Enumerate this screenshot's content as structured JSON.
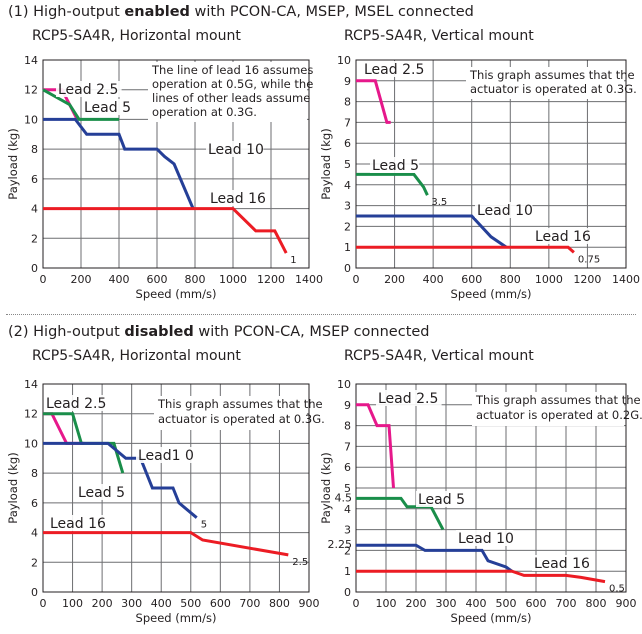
{
  "sections": [
    {
      "prefix": "(1) High-output ",
      "bold": "enabled",
      "suffix": " with PCON-CA, MSEP, MSEL connected"
    },
    {
      "prefix": "(2) High-output ",
      "bold": "disabled",
      "suffix": " with PCON-CA, MSEP connected"
    }
  ],
  "colors": {
    "lead_2_5": "#e6188b",
    "lead_5": "#1a8e4a",
    "lead_10": "#253f97",
    "lead_16": "#ec1c24",
    "grid": "#6d6e71",
    "frame": "#231f20"
  },
  "chart_data": [
    {
      "type": "line",
      "title": "RCP5-SA4R, Horizontal mount",
      "xlabel": "Speed (mm/s)",
      "ylabel": "Payload (kg)",
      "xlim": [
        0,
        1400
      ],
      "ylim": [
        0,
        14
      ],
      "xticks": [
        0,
        200,
        400,
        600,
        800,
        1000,
        1200,
        1400
      ],
      "yticks": [
        0,
        2,
        4,
        6,
        8,
        10,
        12,
        14
      ],
      "grid": true,
      "annotation": [
        "The line of lead 16 assumes",
        "operation at 0.5G, while the",
        "lines of other leads assume",
        "operation at 0.3G."
      ],
      "series": [
        {
          "name": "Lead 2.5",
          "color_key": "lead_2_5",
          "x": [
            0,
            100,
            180
          ],
          "y": [
            12,
            12,
            10
          ],
          "end_label": ""
        },
        {
          "name": "Lead 5",
          "color_key": "lead_5",
          "x": [
            0,
            140,
            190,
            400
          ],
          "y": [
            12,
            11,
            10,
            10
          ],
          "end_label": ""
        },
        {
          "name": "Lead 10",
          "color_key": "lead_10",
          "x": [
            0,
            170,
            230,
            400,
            430,
            600,
            640,
            690,
            790
          ],
          "y": [
            10,
            10,
            9,
            9,
            8,
            8,
            7.5,
            7,
            4
          ],
          "end_label": ""
        },
        {
          "name": "Lead 16",
          "color_key": "lead_16",
          "x": [
            0,
            1000,
            1120,
            1220,
            1280
          ],
          "y": [
            4,
            4,
            2.5,
            2.5,
            1
          ],
          "end_label": "1"
        }
      ]
    },
    {
      "type": "line",
      "title": "RCP5-SA4R, Vertical mount",
      "xlabel": "Speed (mm/s)",
      "ylabel": "Payload (kg)",
      "xlim": [
        0,
        1400
      ],
      "ylim": [
        0,
        10
      ],
      "xticks": [
        0,
        200,
        400,
        600,
        800,
        1000,
        1200,
        1400
      ],
      "yticks": [
        0,
        1,
        2,
        3,
        4,
        5,
        6,
        7,
        8,
        9,
        10
      ],
      "grid": true,
      "annotation": [
        "This graph assumes that the",
        "actuator is operated at 0.3G."
      ],
      "series": [
        {
          "name": "Lead 2.5",
          "color_key": "lead_2_5",
          "x": [
            0,
            100,
            160,
            180
          ],
          "y": [
            9,
            9,
            7,
            7
          ],
          "end_label": ""
        },
        {
          "name": "Lead 5",
          "color_key": "lead_5",
          "x": [
            0,
            300,
            350,
            370
          ],
          "y": [
            4.5,
            4.5,
            3.9,
            3.5
          ],
          "end_label": "3.5"
        },
        {
          "name": "Lead 10",
          "color_key": "lead_10",
          "x": [
            0,
            600,
            700,
            780
          ],
          "y": [
            2.5,
            2.5,
            1.5,
            1
          ],
          "end_label": ""
        },
        {
          "name": "Lead 16",
          "color_key": "lead_16",
          "x": [
            0,
            1100,
            1130
          ],
          "y": [
            1,
            1,
            0.75
          ],
          "end_label": "0.75"
        }
      ]
    },
    {
      "type": "line",
      "title": "RCP5-SA4R, Horizontal mount",
      "xlabel": "Speed (mm/s)",
      "ylabel": "Payload (kg)",
      "xlim": [
        0,
        900
      ],
      "ylim": [
        0,
        14
      ],
      "xticks": [
        0,
        100,
        200,
        300,
        400,
        500,
        600,
        700,
        800,
        900
      ],
      "yticks": [
        0,
        2,
        4,
        6,
        8,
        10,
        12,
        14
      ],
      "grid": true,
      "annotation": [
        "This graph assumes that the",
        "actuator is operated at 0.3G."
      ],
      "series": [
        {
          "name": "Lead 2.5",
          "color_key": "lead_2_5",
          "x": [
            0,
            30,
            80,
            120,
            140
          ],
          "y": [
            12,
            12,
            10,
            10,
            10
          ],
          "end_label": ""
        },
        {
          "name": "Lead 5",
          "color_key": "lead_5",
          "x": [
            0,
            100,
            130,
            240,
            270
          ],
          "y": [
            12,
            12,
            10,
            10,
            8
          ],
          "end_label": ""
        },
        {
          "name": "Lead1 0",
          "color_key": "lead_10",
          "x": [
            0,
            180,
            220,
            280,
            330,
            370,
            440,
            460,
            520
          ],
          "y": [
            10,
            10,
            10,
            9,
            9,
            7,
            7,
            6,
            5
          ],
          "end_label": "5"
        },
        {
          "name": "Lead 16",
          "color_key": "lead_16",
          "x": [
            0,
            500,
            540,
            830
          ],
          "y": [
            4,
            4,
            3.5,
            2.5
          ],
          "end_label": "2.5"
        }
      ]
    },
    {
      "type": "line",
      "title": "RCP5-SA4R, Vertical mount",
      "xlabel": "Speed (mm/s)",
      "ylabel": "Payload (kg)",
      "xlim": [
        0,
        900
      ],
      "ylim": [
        0,
        10
      ],
      "xticks": [
        0,
        100,
        200,
        300,
        400,
        500,
        600,
        700,
        800,
        900
      ],
      "yticks": [
        0,
        1,
        2,
        3,
        4,
        5,
        6,
        7,
        8,
        9,
        10
      ],
      "extra_yticks": [
        2.25,
        4.5
      ],
      "grid": true,
      "annotation": [
        "This graph assumes that the",
        "actuator is operated at 0.2G."
      ],
      "series": [
        {
          "name": "Lead 2.5",
          "color_key": "lead_2_5",
          "x": [
            0,
            40,
            70,
            110,
            125
          ],
          "y": [
            9,
            9,
            8,
            8,
            5
          ],
          "end_label": ""
        },
        {
          "name": "Lead 5",
          "color_key": "lead_5",
          "x": [
            0,
            150,
            170,
            250,
            290
          ],
          "y": [
            4.5,
            4.5,
            4.1,
            4.1,
            3
          ],
          "end_label": ""
        },
        {
          "name": "Lead 10",
          "color_key": "lead_10",
          "x": [
            0,
            200,
            230,
            420,
            440,
            500,
            520
          ],
          "y": [
            2.25,
            2.25,
            2,
            2,
            1.5,
            1.2,
            1
          ],
          "end_label": ""
        },
        {
          "name": "Lead 16",
          "color_key": "lead_16",
          "x": [
            0,
            520,
            560,
            700,
            750,
            830
          ],
          "y": [
            1,
            1,
            0.8,
            0.8,
            0.7,
            0.5
          ],
          "end_label": "0.5"
        }
      ]
    }
  ]
}
